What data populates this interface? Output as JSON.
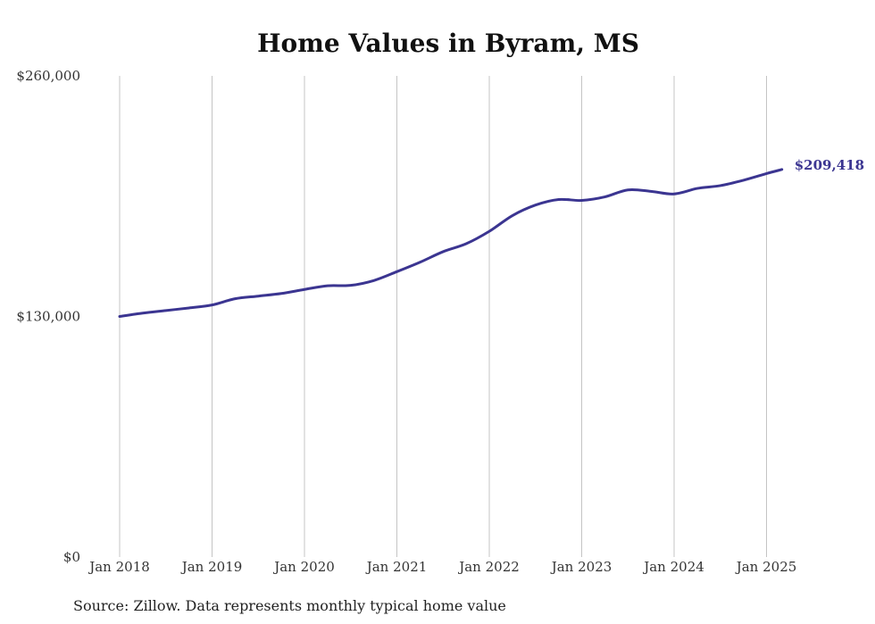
{
  "chart_data": {
    "type": "line",
    "title": "Home Values in Byram, MS",
    "source": "Source: Zillow. Data represents monthly typical home value",
    "xlabel": "",
    "ylabel": "",
    "ylim": [
      0,
      260000
    ],
    "y_ticks": [
      {
        "value": 0,
        "label": "$0"
      },
      {
        "value": 130000,
        "label": "$130,000"
      },
      {
        "value": 260000,
        "label": "$260,000"
      }
    ],
    "x_ticks": [
      {
        "date": "2018-01",
        "label": "Jan 2018"
      },
      {
        "date": "2019-01",
        "label": "Jan 2019"
      },
      {
        "date": "2020-01",
        "label": "Jan 2020"
      },
      {
        "date": "2021-01",
        "label": "Jan 2021"
      },
      {
        "date": "2022-01",
        "label": "Jan 2022"
      },
      {
        "date": "2023-01",
        "label": "Jan 2023"
      },
      {
        "date": "2024-01",
        "label": "Jan 2024"
      },
      {
        "date": "2025-01",
        "label": "Jan 2025"
      }
    ],
    "grid": {
      "vertical": true,
      "horizontal": false
    },
    "line_color": "#3b3591",
    "end_label": "$209,418",
    "series": [
      {
        "x": [
          "2018-01",
          "2018-04",
          "2018-07",
          "2018-10",
          "2019-01",
          "2019-04",
          "2019-07",
          "2019-10",
          "2020-01",
          "2020-04",
          "2020-07",
          "2020-10",
          "2021-01",
          "2021-04",
          "2021-07",
          "2021-10",
          "2022-01",
          "2022-04",
          "2022-07",
          "2022-10",
          "2023-01",
          "2023-04",
          "2023-07",
          "2023-10",
          "2024-01",
          "2024-04",
          "2024-07",
          "2024-10",
          "2025-01",
          "2025-03"
        ],
        "values": [
          130000,
          131800,
          133200,
          134600,
          136200,
          139600,
          141000,
          142400,
          144600,
          146600,
          146800,
          149400,
          154200,
          159300,
          165000,
          169300,
          176000,
          184500,
          190200,
          193200,
          192700,
          194600,
          198400,
          197600,
          196200,
          199200,
          200700,
          203600,
          207200,
          209418
        ]
      }
    ]
  }
}
